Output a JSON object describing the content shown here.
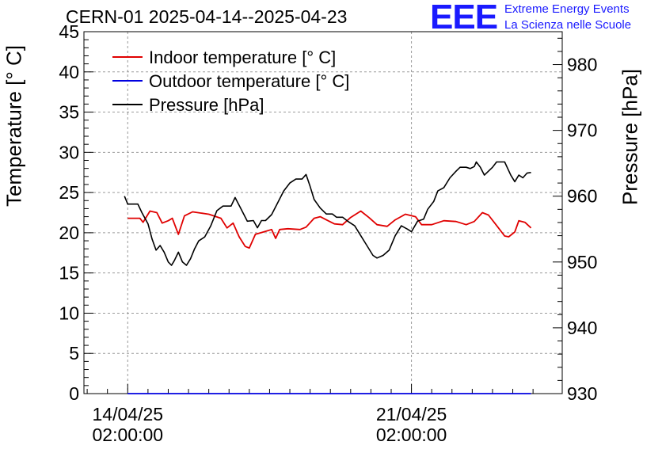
{
  "header": {
    "title": "CERN-01 2025-04-14--2025-04-23",
    "logo_text": "EEE",
    "org_line1": "Extreme Energy Events",
    "org_line2": "La Scienza nelle Scuole"
  },
  "colors": {
    "indoor": "#e00000",
    "outdoor": "#0000e0",
    "pressure": "#000000",
    "brand": "#1a1aff"
  },
  "chart_data": {
    "type": "line",
    "title": "CERN-01 2025-04-14--2025-04-23",
    "xlabel": "",
    "ylabel_left": "Temperature [° C]",
    "ylabel_right": "Pressure [hPa]",
    "x_unit": "days",
    "x_ticks": [
      {
        "x": 0,
        "line1": "14/04/25",
        "line2": "02:00:00"
      },
      {
        "x": 7,
        "line1": "21/04/25",
        "line2": "02:00:00"
      }
    ],
    "xlim": [
      -1.08,
      10.72
    ],
    "ylim_left": [
      0,
      45
    ],
    "ylim_right": [
      930,
      985
    ],
    "y_ticks_left": [
      0,
      5,
      10,
      15,
      20,
      25,
      30,
      35,
      40,
      45
    ],
    "y_ticks_right": [
      930,
      940,
      950,
      960,
      970,
      980
    ],
    "grid": true,
    "legend_position": "top-left",
    "series": [
      {
        "name": "Indoor temperature [° C]",
        "axis": "left",
        "color": "#e00000",
        "points": [
          [
            0,
            21.8
          ],
          [
            0.3,
            21.8
          ],
          [
            0.38,
            21.3
          ],
          [
            0.55,
            22.7
          ],
          [
            0.72,
            22.5
          ],
          [
            0.85,
            21.2
          ],
          [
            1.0,
            21.5
          ],
          [
            1.1,
            21.8
          ],
          [
            1.25,
            19.8
          ],
          [
            1.4,
            22.1
          ],
          [
            1.6,
            22.6
          ],
          [
            2.0,
            22.3
          ],
          [
            2.3,
            21.8
          ],
          [
            2.45,
            20.6
          ],
          [
            2.6,
            21.2
          ],
          [
            2.75,
            19.5
          ],
          [
            2.9,
            18.3
          ],
          [
            3.0,
            18.1
          ],
          [
            3.15,
            19.8
          ],
          [
            3.35,
            20.1
          ],
          [
            3.55,
            20.4
          ],
          [
            3.65,
            19.3
          ],
          [
            3.75,
            20.4
          ],
          [
            3.95,
            20.5
          ],
          [
            4.25,
            20.4
          ],
          [
            4.4,
            20.7
          ],
          [
            4.6,
            21.8
          ],
          [
            4.75,
            22.0
          ],
          [
            4.9,
            21.6
          ],
          [
            5.1,
            21.1
          ],
          [
            5.3,
            21.0
          ],
          [
            5.5,
            21.9
          ],
          [
            5.75,
            22.7
          ],
          [
            5.95,
            21.9
          ],
          [
            6.15,
            21.0
          ],
          [
            6.4,
            20.8
          ],
          [
            6.6,
            21.6
          ],
          [
            6.85,
            22.3
          ],
          [
            7.1,
            22.0
          ],
          [
            7.25,
            21.0
          ],
          [
            7.5,
            21.0
          ],
          [
            7.8,
            21.5
          ],
          [
            8.1,
            21.4
          ],
          [
            8.35,
            21.0
          ],
          [
            8.55,
            21.4
          ],
          [
            8.75,
            22.5
          ],
          [
            8.9,
            22.2
          ],
          [
            9.1,
            20.9
          ],
          [
            9.3,
            19.6
          ],
          [
            9.4,
            19.5
          ],
          [
            9.55,
            20.1
          ],
          [
            9.65,
            21.5
          ],
          [
            9.8,
            21.3
          ],
          [
            9.95,
            20.6
          ]
        ]
      },
      {
        "name": "Outdoor temperature [° C]",
        "axis": "left",
        "color": "#0000e0",
        "points": [
          [
            0,
            0
          ],
          [
            9.95,
            0
          ]
        ]
      },
      {
        "name": "Pressure [hPa]",
        "axis": "right",
        "color": "#000000",
        "points": [
          [
            -0.08,
            960.0
          ],
          [
            0.0,
            958.8
          ],
          [
            0.25,
            958.8
          ],
          [
            0.35,
            957.5
          ],
          [
            0.5,
            955.8
          ],
          [
            0.6,
            953.5
          ],
          [
            0.7,
            951.8
          ],
          [
            0.8,
            952.5
          ],
          [
            0.9,
            951.5
          ],
          [
            1.0,
            950.0
          ],
          [
            1.08,
            949.5
          ],
          [
            1.15,
            950.2
          ],
          [
            1.25,
            951.5
          ],
          [
            1.35,
            950.0
          ],
          [
            1.45,
            949.5
          ],
          [
            1.55,
            950.5
          ],
          [
            1.65,
            952.0
          ],
          [
            1.75,
            953.2
          ],
          [
            1.9,
            953.8
          ],
          [
            2.05,
            955.5
          ],
          [
            2.2,
            957.8
          ],
          [
            2.35,
            958.5
          ],
          [
            2.55,
            958.5
          ],
          [
            2.65,
            959.8
          ],
          [
            2.8,
            958.0
          ],
          [
            2.95,
            956.2
          ],
          [
            3.1,
            956.3
          ],
          [
            3.2,
            955.2
          ],
          [
            3.3,
            956.3
          ],
          [
            3.4,
            956.3
          ],
          [
            3.55,
            957.2
          ],
          [
            3.7,
            959.0
          ],
          [
            3.85,
            960.8
          ],
          [
            4.0,
            962.0
          ],
          [
            4.15,
            962.6
          ],
          [
            4.3,
            962.6
          ],
          [
            4.4,
            963.3
          ],
          [
            4.5,
            961.5
          ],
          [
            4.6,
            959.5
          ],
          [
            4.75,
            958.2
          ],
          [
            4.9,
            957.3
          ],
          [
            5.05,
            957.3
          ],
          [
            5.15,
            956.8
          ],
          [
            5.3,
            956.8
          ],
          [
            5.45,
            956.1
          ],
          [
            5.6,
            955.5
          ],
          [
            5.75,
            954.0
          ],
          [
            5.9,
            952.5
          ],
          [
            6.05,
            951.0
          ],
          [
            6.15,
            950.6
          ],
          [
            6.3,
            951.0
          ],
          [
            6.45,
            951.8
          ],
          [
            6.6,
            954.0
          ],
          [
            6.75,
            955.5
          ],
          [
            6.9,
            955.0
          ],
          [
            7.0,
            954.6
          ],
          [
            7.15,
            956.2
          ],
          [
            7.3,
            956.5
          ],
          [
            7.4,
            958.0
          ],
          [
            7.55,
            959.2
          ],
          [
            7.65,
            960.8
          ],
          [
            7.8,
            961.3
          ],
          [
            7.95,
            962.8
          ],
          [
            8.1,
            963.8
          ],
          [
            8.2,
            964.4
          ],
          [
            8.35,
            964.4
          ],
          [
            8.45,
            964.2
          ],
          [
            8.55,
            964.5
          ],
          [
            8.6,
            965.2
          ],
          [
            8.7,
            964.4
          ],
          [
            8.8,
            963.2
          ],
          [
            8.9,
            963.8
          ],
          [
            9.0,
            964.4
          ],
          [
            9.1,
            965.2
          ],
          [
            9.3,
            965.2
          ],
          [
            9.45,
            963.2
          ],
          [
            9.55,
            962.2
          ],
          [
            9.65,
            963.2
          ],
          [
            9.75,
            962.8
          ],
          [
            9.85,
            963.5
          ],
          [
            9.95,
            963.6
          ]
        ]
      }
    ]
  }
}
